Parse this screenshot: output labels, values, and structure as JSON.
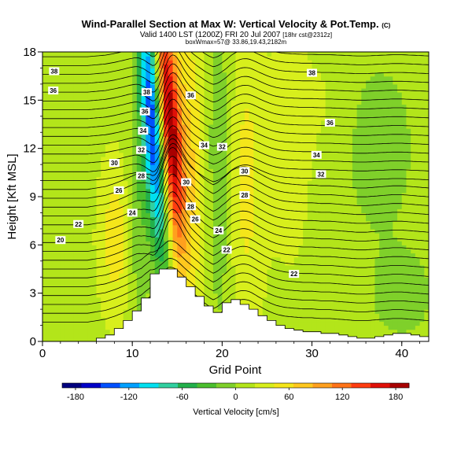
{
  "header": {
    "title": "Wind-Parallel Section at Max W: Vertical Velocity & Pot.Temp.",
    "title_mark": "(C)",
    "valid_line": "Valid 1400 LST (1200Z) FRI 20 Jul 2007",
    "grid_note": "[18hr cst@2312z]",
    "box_line": "boxWmax=57@ 33.86,19.43,2182m"
  },
  "colorbar": {
    "label": "Vertical Velocity [cm/s]",
    "ticks": [
      "-180",
      "-120",
      "-60",
      "0",
      "60",
      "120",
      "180"
    ],
    "min": -195,
    "max": 195,
    "colors": [
      "#00007f",
      "#0000c8",
      "#0050ff",
      "#00a0ff",
      "#00e0f0",
      "#30d0a0",
      "#22b04a",
      "#4bbf2e",
      "#7fd02a",
      "#b3e51a",
      "#d8ef1c",
      "#f5e61a",
      "#ffc81e",
      "#ffa01e",
      "#ff7318",
      "#ff3c10",
      "#e01008",
      "#a80000"
    ]
  },
  "chart_data": {
    "type": "contour",
    "xlabel": "Grid Point",
    "ylabel": "Height [Kft MSL]",
    "xlim": [
      0,
      43
    ],
    "ylim": [
      0,
      18
    ],
    "xticks": [
      0,
      10,
      20,
      30,
      40
    ],
    "yticks": [
      0,
      3,
      6,
      9,
      12,
      15,
      18
    ],
    "theta_labels": [
      "20",
      "22",
      "22",
      "22",
      "24",
      "24",
      "26",
      "26",
      "28",
      "28",
      "28",
      "30",
      "30",
      "30",
      "32",
      "32",
      "32",
      "34",
      "34",
      "34",
      "36",
      "36",
      "36",
      "36",
      "38",
      "38",
      "38"
    ],
    "terrain_kft": [
      0,
      0,
      0,
      0,
      0,
      0,
      0.2,
      0.4,
      0.8,
      1.3,
      1.9,
      2.7,
      4.2,
      4.5,
      4.5,
      4.0,
      3.4,
      2.8,
      2.2,
      1.8,
      2.4,
      2.6,
      2.3,
      2.0,
      1.6,
      1.3,
      1.0,
      0.8,
      0.7,
      0.6,
      0.6,
      0.5,
      0.5,
      0.4,
      0.3,
      0.2,
      0.2,
      0.3,
      0.4,
      0.5,
      0.5,
      0.4,
      0.3,
      0.2
    ]
  }
}
